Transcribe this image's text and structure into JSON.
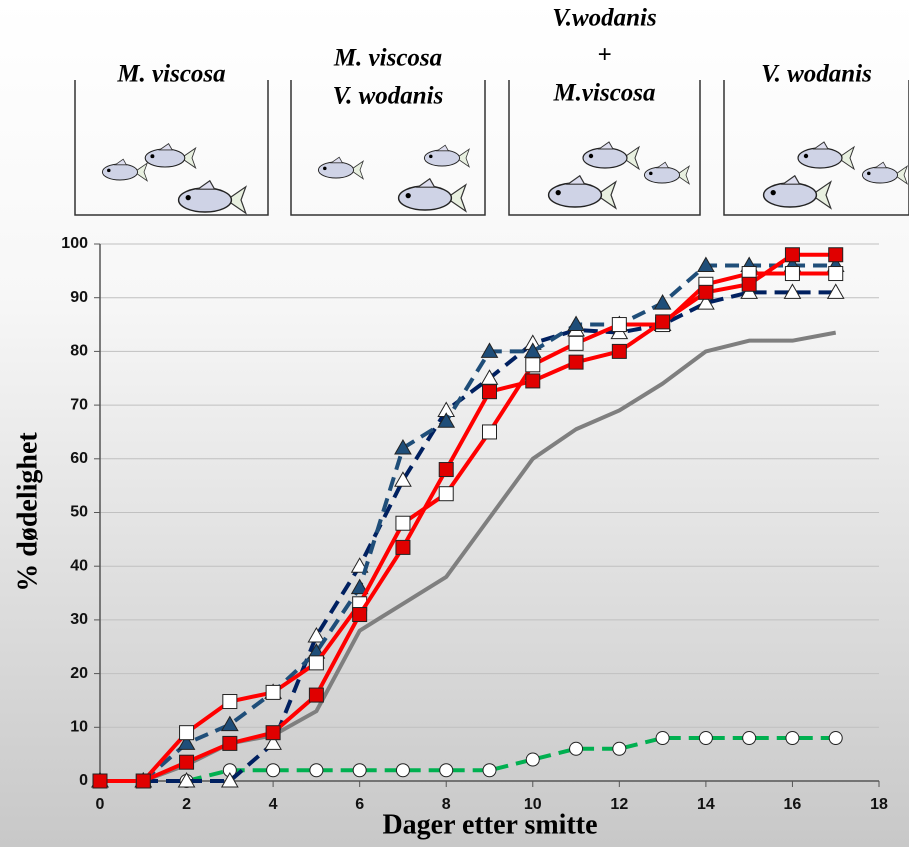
{
  "chart_data": {
    "type": "line",
    "panels": [
      {
        "lines": [
          "M. viscosa"
        ]
      },
      {
        "lines": [
          "M. viscosa",
          "V. wodanis"
        ]
      },
      {
        "lines": [
          "V.wodanis",
          "+",
          "M.viscosa"
        ]
      },
      {
        "lines": [
          "V. wodanis"
        ]
      }
    ],
    "x_label": "Dager etter smitte",
    "y_label": "% dødelighet",
    "xlim": [
      0,
      18
    ],
    "xticks": [
      0,
      2,
      4,
      6,
      8,
      10,
      12,
      14,
      16,
      18
    ],
    "ylim": [
      0,
      100
    ],
    "yticks": [
      0,
      10,
      20,
      30,
      40,
      50,
      60,
      70,
      80,
      90,
      100
    ],
    "grid": true,
    "x": [
      0,
      1,
      2,
      3,
      4,
      5,
      6,
      7,
      8,
      9,
      10,
      11,
      12,
      13,
      14,
      15,
      16,
      17
    ],
    "series": [
      {
        "color": "#7f7f7f",
        "dash": false,
        "marker": "none",
        "marker_fill": "#ffffff",
        "values": [
          0,
          0,
          3,
          7,
          8.5,
          13,
          28,
          33,
          38,
          49,
          60,
          65.5,
          69,
          74,
          80,
          82,
          82,
          83.5
        ]
      },
      {
        "color": "#00b050",
        "dash": true,
        "marker": "circle",
        "marker_fill": "#ffffff",
        "values": [
          0,
          0,
          0,
          2,
          2,
          2,
          2,
          2,
          2,
          2,
          4,
          6,
          6,
          8,
          8,
          8,
          8,
          8
        ]
      },
      {
        "color": "#002060",
        "dash": true,
        "marker": "triangle",
        "marker_fill": "#ffffff",
        "values": [
          0,
          0,
          0,
          0,
          7,
          27,
          40,
          56,
          69,
          75,
          81.5,
          84,
          83.5,
          85,
          89,
          91,
          91,
          91
        ]
      },
      {
        "color": "#1f4e79",
        "dash": true,
        "marker": "triangle",
        "marker_fill": "#1f4e79",
        "values": [
          0,
          0,
          7,
          10.5,
          16.5,
          24,
          36,
          62,
          67,
          80,
          80,
          85,
          85,
          89,
          96,
          96,
          96,
          96
        ]
      },
      {
        "color": "#ff0000",
        "dash": false,
        "marker": "square",
        "marker_fill": "#ffffff",
        "values": [
          0,
          0,
          9,
          14.8,
          16.5,
          22,
          33,
          48,
          53.5,
          65,
          77.5,
          81.5,
          85,
          85,
          92.5,
          94.5,
          94.5,
          94.5
        ]
      },
      {
        "color": "#ff0000",
        "dash": false,
        "marker": "square",
        "marker_fill": "#e00000",
        "values": [
          0,
          0,
          3.5,
          7,
          9,
          16,
          31,
          43.5,
          58,
          72.5,
          74.5,
          78,
          80,
          85.5,
          91,
          92.5,
          98,
          98
        ]
      }
    ]
  }
}
